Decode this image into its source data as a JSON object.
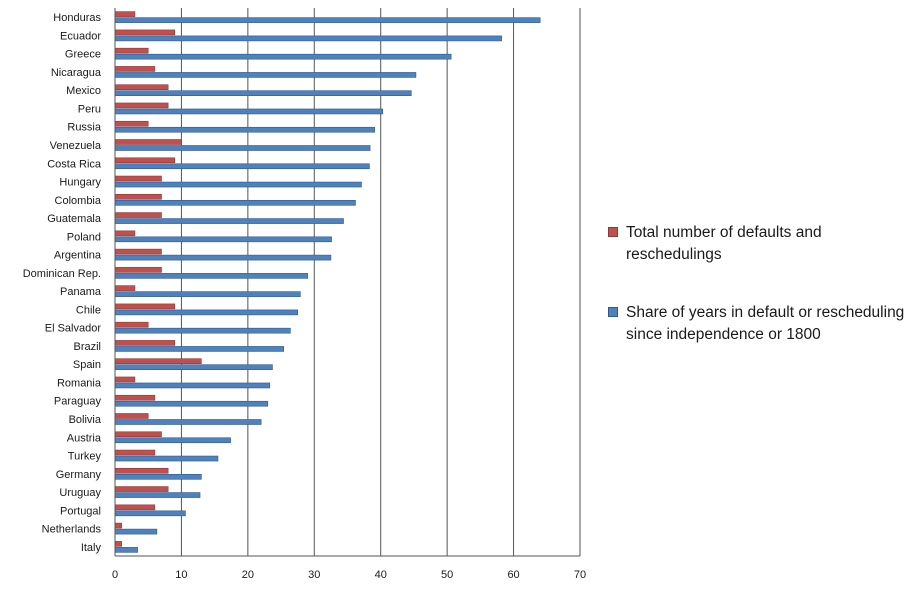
{
  "chart_data": {
    "type": "bar",
    "orientation": "horizontal",
    "categories": [
      "Honduras",
      "Ecuador",
      "Greece",
      "Nicaragua",
      "Mexico",
      "Peru",
      "Russia",
      "Venezuela",
      "Costa Rica",
      "Hungary",
      "Colombia",
      "Guatemala",
      "Poland",
      "Argentina",
      "Dominican Rep.",
      "Panama",
      "Chile",
      "El Salvador",
      "Brazil",
      "Spain",
      "Romania",
      "Paraguay",
      "Bolivia",
      "Austria",
      "Turkey",
      "Germany",
      "Uruguay",
      "Portugal",
      "Netherlands",
      "Italy"
    ],
    "series": [
      {
        "name": "Total number of defaults and reschedulings",
        "color": "#c0504d",
        "values": [
          3,
          9,
          5,
          6,
          8,
          8,
          5,
          10,
          9,
          7,
          7,
          7,
          3,
          7,
          7,
          3,
          9,
          5,
          9,
          13,
          3,
          6,
          5,
          7,
          6,
          8,
          8,
          6,
          1,
          1
        ]
      },
      {
        "name": "Share of years in default or rescheduling since independence or 1800",
        "color": "#4f81bd",
        "values": [
          64,
          58.2,
          50.6,
          45.3,
          44.6,
          40.3,
          39.1,
          38.4,
          38.3,
          37.1,
          36.2,
          34.4,
          32.6,
          32.5,
          29,
          27.9,
          27.5,
          26.4,
          25.4,
          23.7,
          23.3,
          23,
          22,
          17.4,
          15.5,
          13,
          12.8,
          10.6,
          6.3,
          3.4
        ]
      }
    ],
    "xlim": [
      0,
      70
    ],
    "xticks": [
      "0",
      "10",
      "20",
      "30",
      "40",
      "50",
      "60",
      "70"
    ],
    "gridlines": "vertical",
    "legend_position": "right"
  }
}
